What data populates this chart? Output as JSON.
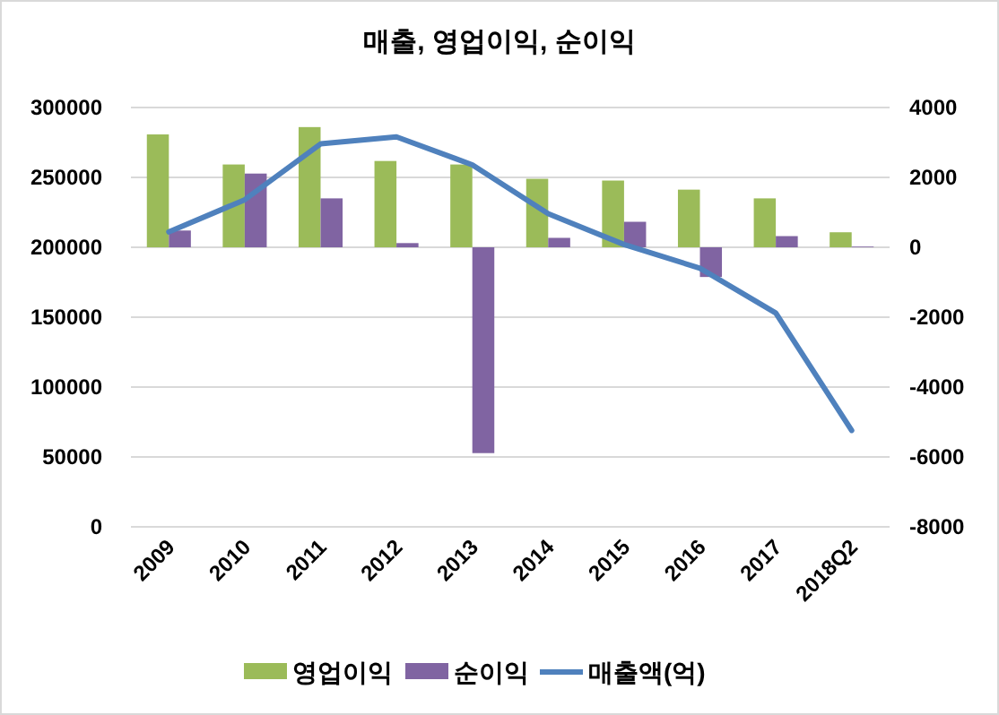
{
  "chart_data": {
    "type": "bar",
    "title": "매출, 영업이익, 순이익",
    "categories": [
      "2009",
      "2010",
      "2011",
      "2012",
      "2013",
      "2014",
      "2015",
      "2016",
      "2017",
      "2018Q2"
    ],
    "series": [
      {
        "name": "영업이익",
        "axis": "y2",
        "color": "#9bbb59",
        "values": [
          3230,
          2370,
          3440,
          2470,
          2370,
          1960,
          1910,
          1650,
          1400,
          430
        ]
      },
      {
        "name": "순이익",
        "axis": "y2",
        "color": "#8064a2",
        "values": [
          480,
          2110,
          1400,
          120,
          -5890,
          270,
          730,
          -850,
          320,
          20
        ]
      },
      {
        "name": "매출액(억)",
        "type": "line",
        "color": "#4f81bd",
        "values": [
          211000,
          234000,
          274000,
          279000,
          259000,
          224000,
          202000,
          185000,
          153000,
          69000
        ]
      }
    ],
    "ylim": [
      0,
      300000
    ],
    "yticks": [
      0,
      50000,
      100000,
      150000,
      200000,
      250000,
      300000
    ],
    "y2lim": [
      -8000,
      4000
    ],
    "y2ticks": [
      -8000,
      -6000,
      -4000,
      -2000,
      0,
      2000,
      4000
    ],
    "grid": "y",
    "legend": "bottom"
  }
}
